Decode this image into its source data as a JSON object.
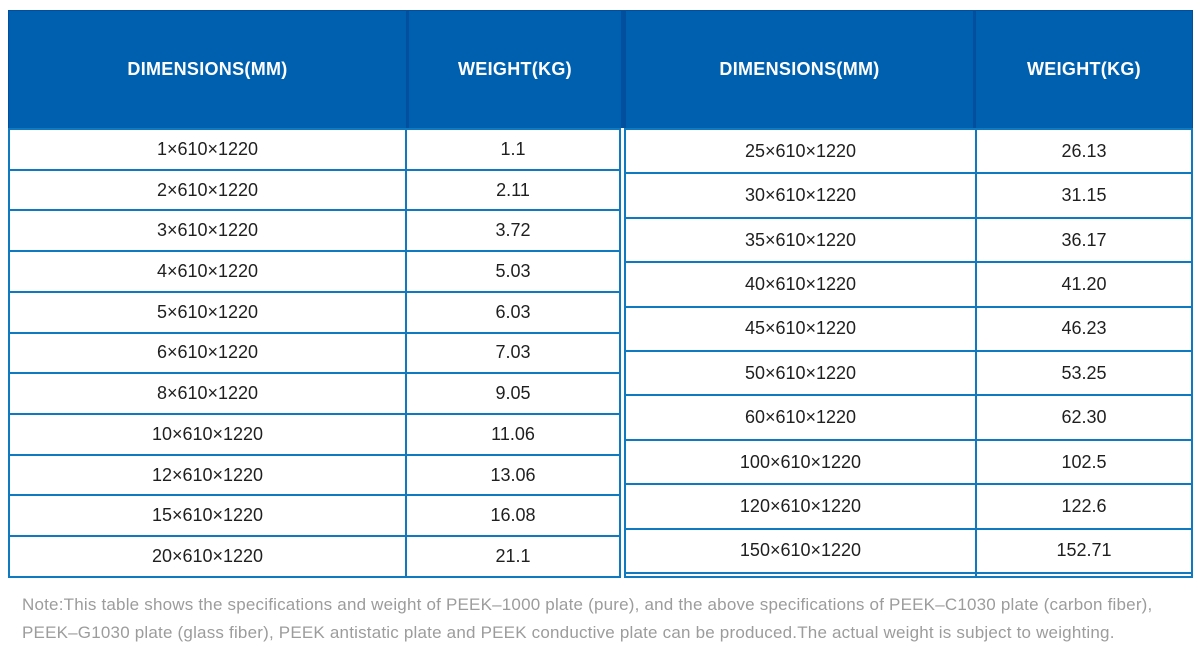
{
  "table": {
    "columns": [
      "DIMENSIONS(MM)",
      "WEIGHT(KG)",
      "DIMENSIONS(MM)",
      "WEIGHT(KG)"
    ],
    "left_rows": [
      {
        "dimensions": "1×610×1220",
        "weight": "1.1"
      },
      {
        "dimensions": "2×610×1220",
        "weight": "2.11"
      },
      {
        "dimensions": "3×610×1220",
        "weight": "3.72"
      },
      {
        "dimensions": "4×610×1220",
        "weight": "5.03"
      },
      {
        "dimensions": "5×610×1220",
        "weight": "6.03"
      },
      {
        "dimensions": "6×610×1220",
        "weight": "7.03"
      },
      {
        "dimensions": "8×610×1220",
        "weight": "9.05"
      },
      {
        "dimensions": "10×610×1220",
        "weight": "11.06"
      },
      {
        "dimensions": "12×610×1220",
        "weight": "13.06"
      },
      {
        "dimensions": "15×610×1220",
        "weight": "16.08"
      },
      {
        "dimensions": "20×610×1220",
        "weight": "21.1"
      }
    ],
    "right_rows": [
      {
        "dimensions": "25×610×1220",
        "weight": "26.13"
      },
      {
        "dimensions": "30×610×1220",
        "weight": "31.15"
      },
      {
        "dimensions": "35×610×1220",
        "weight": "36.17"
      },
      {
        "dimensions": "40×610×1220",
        "weight": "41.20"
      },
      {
        "dimensions": "45×610×1220",
        "weight": "46.23"
      },
      {
        "dimensions": "50×610×1220",
        "weight": "53.25"
      },
      {
        "dimensions": "60×610×1220",
        "weight": "62.30"
      },
      {
        "dimensions": "100×610×1220",
        "weight": "102.5"
      },
      {
        "dimensions": "120×610×1220",
        "weight": "122.6"
      },
      {
        "dimensions": "150×610×1220",
        "weight": "152.71"
      },
      {
        "dimensions": "",
        "weight": ""
      }
    ],
    "colors": {
      "header_bg": "#0060b0",
      "header_divider": "#024f9e",
      "border": "#0f7ac0",
      "header_text": "#ffffff",
      "cell_text": "#1f1f1f"
    }
  },
  "note": {
    "lines": [
      "Note:This table shows the specifications and weight of PEEK–1000 plate (pure), and the above specifications of PEEK–C1030 plate (carbon fiber),",
      "PEEK–G1030 plate (glass fiber), PEEK antistatic plate and PEEK conductive plate can be produced.The actual weight is subject to weighting."
    ],
    "color": "#9c9c9c"
  }
}
